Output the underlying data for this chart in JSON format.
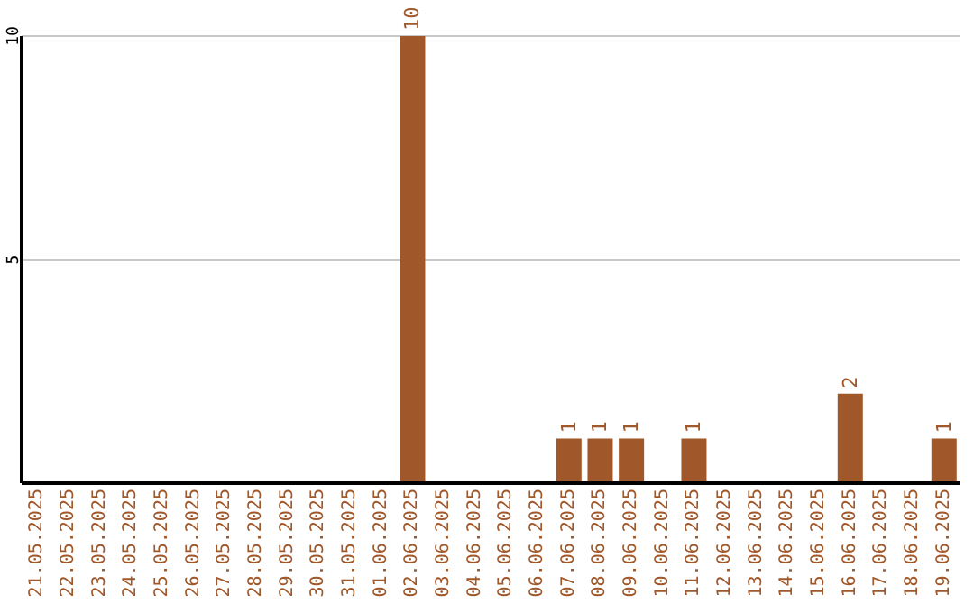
{
  "chart_data": {
    "type": "bar",
    "categories": [
      "21.05.2025",
      "22.05.2025",
      "23.05.2025",
      "24.05.2025",
      "25.05.2025",
      "26.05.2025",
      "27.05.2025",
      "28.05.2025",
      "29.05.2025",
      "30.05.2025",
      "31.05.2025",
      "01.06.2025",
      "02.06.2025",
      "03.06.2025",
      "04.06.2025",
      "05.06.2025",
      "06.06.2025",
      "07.06.2025",
      "08.06.2025",
      "09.06.2025",
      "10.06.2025",
      "11.06.2025",
      "12.06.2025",
      "13.06.2025",
      "14.06.2025",
      "15.06.2025",
      "16.06.2025",
      "17.06.2025",
      "18.06.2025",
      "19.06.2025"
    ],
    "values": [
      0,
      0,
      0,
      0,
      0,
      0,
      0,
      0,
      0,
      0,
      0,
      0,
      10,
      0,
      0,
      0,
      0,
      1,
      1,
      1,
      0,
      1,
      0,
      0,
      0,
      0,
      2,
      0,
      0,
      1
    ],
    "value_labels": [
      null,
      null,
      null,
      null,
      null,
      null,
      null,
      null,
      null,
      null,
      null,
      null,
      "10",
      null,
      null,
      null,
      null,
      "1",
      "1",
      "1",
      null,
      "1",
      null,
      null,
      null,
      null,
      "2",
      null,
      null,
      "1"
    ],
    "color": "#a0582a",
    "ylim": [
      0,
      10
    ],
    "yticks": [
      5,
      10
    ],
    "grid": "y"
  }
}
